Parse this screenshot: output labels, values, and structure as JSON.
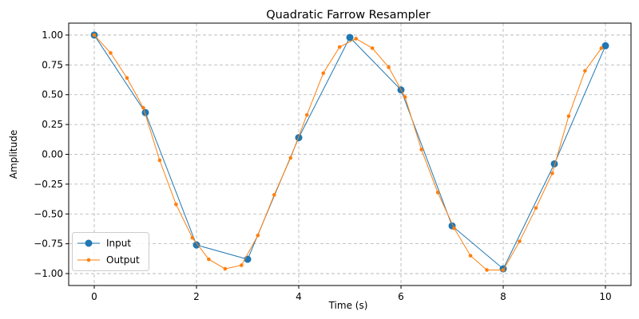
{
  "chart_data": {
    "type": "line",
    "title": "Quadratic Farrow Resampler",
    "xlabel": "Time (s)",
    "ylabel": "Amplitude",
    "xlim": [
      -0.5,
      10.5
    ],
    "ylim": [
      -1.1,
      1.1
    ],
    "xticks": [
      0,
      2,
      4,
      6,
      8,
      10
    ],
    "xtick_labels": [
      "0",
      "2",
      "4",
      "6",
      "8",
      "10"
    ],
    "yticks": [
      -1.0,
      -0.75,
      -0.5,
      -0.25,
      0.0,
      0.25,
      0.5,
      0.75,
      1.0
    ],
    "ytick_labels": [
      "−1.00",
      "−0.75",
      "−0.50",
      "−0.25",
      "0.00",
      "0.25",
      "0.50",
      "0.75",
      "1.00"
    ],
    "grid": true,
    "legend": {
      "position": "lower-left"
    },
    "series": [
      {
        "name": "Input",
        "color": "#1f77b4",
        "marker": "circle-large",
        "x": [
          0,
          1,
          2,
          3,
          4,
          5,
          6,
          7,
          8,
          9,
          10
        ],
        "y": [
          1.0,
          0.35,
          -0.76,
          -0.88,
          0.14,
          0.98,
          0.54,
          -0.6,
          -0.96,
          -0.08,
          0.91
        ]
      },
      {
        "name": "Output",
        "color": "#ff7f0e",
        "marker": "circle-small",
        "x": [
          0,
          0.32,
          0.64,
          0.96,
          1.28,
          1.6,
          1.92,
          2.24,
          2.56,
          2.88,
          3.2,
          3.52,
          3.84,
          4.16,
          4.48,
          4.8,
          5.12,
          5.44,
          5.76,
          6.08,
          6.4,
          6.72,
          7.04,
          7.36,
          7.68,
          8.0,
          8.32,
          8.64,
          8.96,
          9.28,
          9.6,
          9.92
        ],
        "y": [
          1.0,
          0.85,
          0.64,
          0.39,
          -0.05,
          -0.42,
          -0.7,
          -0.88,
          -0.96,
          -0.93,
          -0.68,
          -0.34,
          -0.03,
          0.33,
          0.68,
          0.9,
          0.97,
          0.89,
          0.73,
          0.48,
          0.04,
          -0.32,
          -0.62,
          -0.85,
          -0.97,
          -0.97,
          -0.73,
          -0.45,
          -0.16,
          0.32,
          0.7,
          0.89
        ]
      }
    ]
  }
}
